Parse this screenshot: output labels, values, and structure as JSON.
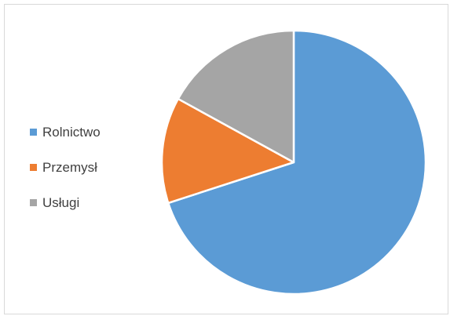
{
  "chart_data": {
    "type": "pie",
    "title": "",
    "categories": [
      "Rolnictwo",
      "Przemysł",
      "Usługi"
    ],
    "values": [
      70,
      13,
      17
    ],
    "colors": [
      "#5b9bd5",
      "#ed7d31",
      "#a5a5a5"
    ],
    "slice_outline_color": "#ffffff",
    "start_angle": "12 o'clock, clockwise",
    "legend": {
      "position": "left",
      "entries": [
        "Rolnictwo",
        "Przemysł",
        "Usługi"
      ]
    }
  }
}
